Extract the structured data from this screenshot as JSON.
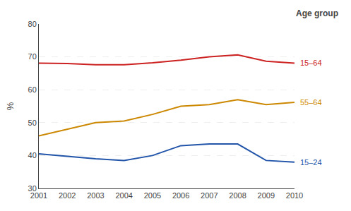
{
  "chart_data": {
    "type": "line",
    "x": [
      2001,
      2002,
      2003,
      2004,
      2005,
      2006,
      2007,
      2008,
      2009,
      2010
    ],
    "series": [
      {
        "name": "15–64",
        "color": "#cc2222",
        "values": [
          68.1,
          68.0,
          67.6,
          67.6,
          68.2,
          69.0,
          70.0,
          70.6,
          68.7,
          68.1
        ]
      },
      {
        "name": "55–64",
        "color": "#cc8800",
        "values": [
          46.0,
          48.0,
          50.0,
          50.5,
          52.5,
          55.0,
          55.5,
          57.0,
          55.5,
          56.2
        ]
      },
      {
        "name": "15–24",
        "color": "#2255aa",
        "values": [
          40.5,
          39.8,
          39.0,
          38.5,
          40.0,
          43.0,
          43.5,
          43.5,
          38.5,
          38.0
        ]
      }
    ],
    "xlim": [
      2001,
      2010
    ],
    "xticks": [
      2001,
      2002,
      2003,
      2004,
      2005,
      2006,
      2007,
      2008,
      2009,
      2010
    ],
    "ylim": [
      30,
      80
    ],
    "yticks": [
      30,
      40,
      50,
      60,
      70,
      80
    ],
    "ylabel": "%",
    "annotations": [
      {
        "text": "Age group"
      }
    ],
    "grid": true
  }
}
